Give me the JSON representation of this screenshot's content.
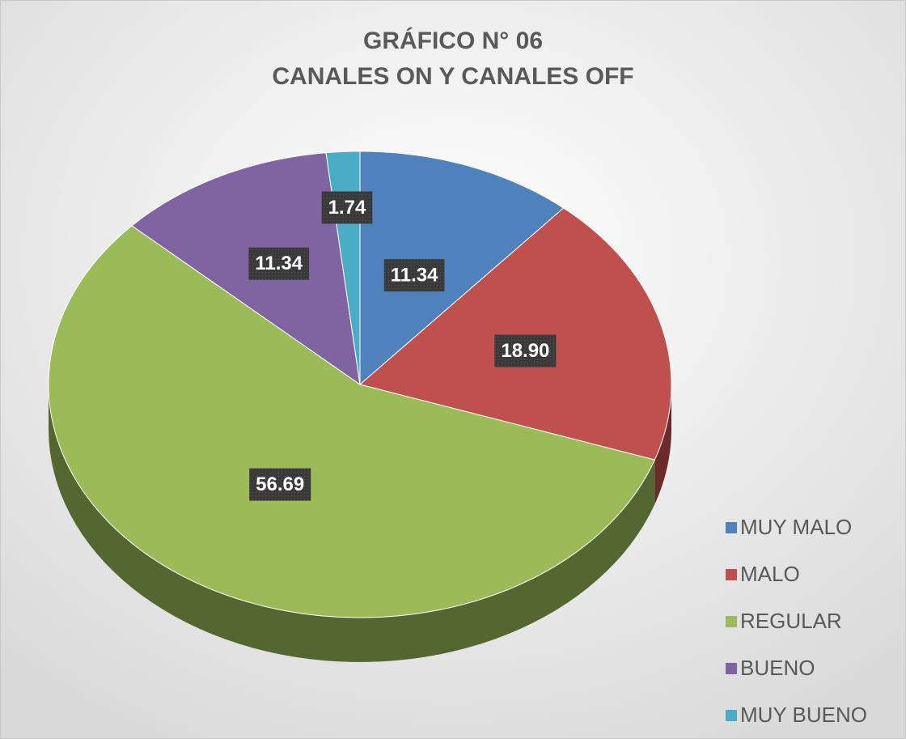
{
  "chart_data": {
    "type": "pie3d",
    "title": "GRÁFICO N° 06",
    "subtitle": "CANALES ON Y CANALES OFF",
    "categories": [
      "MUY MALO",
      "MALO",
      "REGULAR",
      "BUENO",
      "MUY BUENO"
    ],
    "values": [
      11.34,
      18.9,
      56.69,
      11.34,
      1.74
    ],
    "value_labels": [
      "11.34",
      "18.90",
      "56.69",
      "11.34",
      "1.74"
    ],
    "colors": [
      "#4f81bd",
      "#c0504d",
      "#9bbb59",
      "#8064a2",
      "#4bacc6"
    ],
    "legend": "right"
  }
}
